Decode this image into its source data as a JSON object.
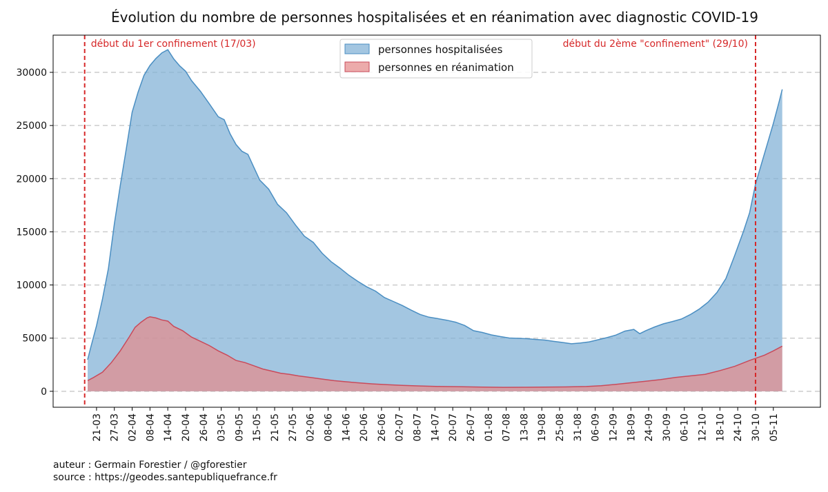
{
  "chart_data": {
    "type": "area",
    "title": "Évolution du nombre de personnes hospitalisées et en réanimation avec diagnostic COVID-19",
    "xlabel": "",
    "ylabel": "",
    "ylim": [
      -1500,
      33500
    ],
    "yticks": [
      0,
      5000,
      10000,
      15000,
      20000,
      25000,
      30000
    ],
    "grid": "horizontal dashed",
    "legend_position": "top-center",
    "x_tick_labels": [
      "21-03",
      "27-03",
      "02-04",
      "08-04",
      "14-04",
      "20-04",
      "26-04",
      "03-05",
      "09-05",
      "15-05",
      "21-05",
      "27-05",
      "02-06",
      "08-06",
      "14-06",
      "20-06",
      "26-06",
      "02-07",
      "08-07",
      "14-07",
      "20-07",
      "26-07",
      "01-08",
      "07-08",
      "13-08",
      "19-08",
      "25-08",
      "31-08",
      "06-09",
      "12-09",
      "18-09",
      "24-09",
      "30-09",
      "06-10",
      "12-10",
      "18-10",
      "24-10",
      "30-10",
      "05-11"
    ],
    "x_start": "2020-03-18",
    "x_end": "2020-11-08",
    "series": [
      {
        "name": "personnes hospitalisées",
        "color": "#7fb0d6",
        "line_color": "#4a8ec2",
        "points": [
          [
            "2020-03-18",
            2972
          ],
          [
            "2020-03-19",
            4073
          ],
          [
            "2020-03-21",
            6172
          ],
          [
            "2020-03-23",
            8673
          ],
          [
            "2020-03-25",
            11539
          ],
          [
            "2020-03-27",
            15732
          ],
          [
            "2020-03-29",
            19354
          ],
          [
            "2020-03-31",
            22757
          ],
          [
            "2020-04-02",
            26246
          ],
          [
            "2020-04-04",
            28143
          ],
          [
            "2020-04-06",
            29722
          ],
          [
            "2020-04-08",
            30639
          ],
          [
            "2020-04-10",
            31305
          ],
          [
            "2020-04-12",
            31832
          ],
          [
            "2020-04-14",
            32131
          ],
          [
            "2020-04-16",
            31267
          ],
          [
            "2020-04-18",
            30610
          ],
          [
            "2020-04-20",
            30106
          ],
          [
            "2020-04-22",
            29219
          ],
          [
            "2020-04-25",
            28217
          ],
          [
            "2020-04-28",
            27036
          ],
          [
            "2020-05-01",
            25827
          ],
          [
            "2020-05-03",
            25548
          ],
          [
            "2020-05-05",
            24211
          ],
          [
            "2020-05-07",
            23208
          ],
          [
            "2020-05-09",
            22569
          ],
          [
            "2020-05-11",
            22284
          ],
          [
            "2020-05-13",
            21071
          ],
          [
            "2020-05-15",
            19861
          ],
          [
            "2020-05-18",
            19015
          ],
          [
            "2020-05-21",
            17583
          ],
          [
            "2020-05-24",
            16798
          ],
          [
            "2020-05-27",
            15657
          ],
          [
            "2020-05-30",
            14594
          ],
          [
            "2020-06-02",
            14008
          ],
          [
            "2020-06-05",
            12986
          ],
          [
            "2020-06-08",
            12197
          ],
          [
            "2020-06-11",
            11586
          ],
          [
            "2020-06-14",
            10921
          ],
          [
            "2020-06-17",
            10341
          ],
          [
            "2020-06-20",
            9828
          ],
          [
            "2020-06-23",
            9419
          ],
          [
            "2020-06-26",
            8821
          ],
          [
            "2020-06-29",
            8450
          ],
          [
            "2020-07-02",
            8074
          ],
          [
            "2020-07-05",
            7630
          ],
          [
            "2020-07-08",
            7230
          ],
          [
            "2020-07-11",
            6970
          ],
          [
            "2020-07-14",
            6838
          ],
          [
            "2020-07-17",
            6683
          ],
          [
            "2020-07-20",
            6498
          ],
          [
            "2020-07-23",
            6192
          ],
          [
            "2020-07-26",
            5700
          ],
          [
            "2020-07-29",
            5530
          ],
          [
            "2020-08-01",
            5306
          ],
          [
            "2020-08-04",
            5148
          ],
          [
            "2020-08-07",
            5015
          ],
          [
            "2020-08-10",
            4980
          ],
          [
            "2020-08-13",
            4947
          ],
          [
            "2020-08-16",
            4879
          ],
          [
            "2020-08-19",
            4819
          ],
          [
            "2020-08-22",
            4696
          ],
          [
            "2020-08-25",
            4590
          ],
          [
            "2020-08-28",
            4472
          ],
          [
            "2020-08-31",
            4550
          ],
          [
            "2020-09-03",
            4650
          ],
          [
            "2020-09-06",
            4850
          ],
          [
            "2020-09-09",
            5050
          ],
          [
            "2020-09-12",
            5290
          ],
          [
            "2020-09-15",
            5660
          ],
          [
            "2020-09-18",
            5820
          ],
          [
            "2020-09-20",
            5420
          ],
          [
            "2020-09-22",
            5700
          ],
          [
            "2020-09-25",
            6050
          ],
          [
            "2020-09-28",
            6350
          ],
          [
            "2020-10-01",
            6560
          ],
          [
            "2020-10-04",
            6796
          ],
          [
            "2020-10-07",
            7210
          ],
          [
            "2020-10-10",
            7720
          ],
          [
            "2020-10-13",
            8380
          ],
          [
            "2020-10-16",
            9300
          ],
          [
            "2020-10-19",
            10600
          ],
          [
            "2020-10-22",
            12800
          ],
          [
            "2020-10-25",
            15100
          ],
          [
            "2020-10-27",
            16800
          ],
          [
            "2020-10-29",
            19500
          ],
          [
            "2020-10-31",
            21400
          ],
          [
            "2020-11-02",
            23300
          ],
          [
            "2020-11-04",
            25200
          ],
          [
            "2020-11-06",
            27300
          ],
          [
            "2020-11-07",
            28400
          ]
        ]
      },
      {
        "name": "personnes en réanimation",
        "color": "#e58a8a",
        "line_color": "#c94a5a",
        "points": [
          [
            "2020-03-18",
            1000
          ],
          [
            "2020-03-20",
            1300
          ],
          [
            "2020-03-23",
            1800
          ],
          [
            "2020-03-26",
            2700
          ],
          [
            "2020-03-29",
            3800
          ],
          [
            "2020-04-01",
            5107
          ],
          [
            "2020-04-03",
            6017
          ],
          [
            "2020-04-05",
            6500
          ],
          [
            "2020-04-07",
            6900
          ],
          [
            "2020-04-08",
            7004
          ],
          [
            "2020-04-10",
            6900
          ],
          [
            "2020-04-12",
            6714
          ],
          [
            "2020-04-14",
            6600
          ],
          [
            "2020-04-16",
            6100
          ],
          [
            "2020-04-19",
            5700
          ],
          [
            "2020-04-22",
            5100
          ],
          [
            "2020-04-25",
            4700
          ],
          [
            "2020-04-28",
            4300
          ],
          [
            "2020-05-01",
            3800
          ],
          [
            "2020-05-04",
            3400
          ],
          [
            "2020-05-07",
            2900
          ],
          [
            "2020-05-10",
            2700
          ],
          [
            "2020-05-13",
            2400
          ],
          [
            "2020-05-16",
            2100
          ],
          [
            "2020-05-19",
            1900
          ],
          [
            "2020-05-22",
            1700
          ],
          [
            "2020-05-25",
            1600
          ],
          [
            "2020-05-28",
            1450
          ],
          [
            "2020-06-01",
            1300
          ],
          [
            "2020-06-05",
            1150
          ],
          [
            "2020-06-09",
            1000
          ],
          [
            "2020-06-13",
            900
          ],
          [
            "2020-06-17",
            800
          ],
          [
            "2020-06-22",
            700
          ],
          [
            "2020-06-27",
            620
          ],
          [
            "2020-07-02",
            560
          ],
          [
            "2020-07-08",
            500
          ],
          [
            "2020-07-15",
            450
          ],
          [
            "2020-07-22",
            430
          ],
          [
            "2020-07-29",
            390
          ],
          [
            "2020-08-05",
            370
          ],
          [
            "2020-08-12",
            380
          ],
          [
            "2020-08-19",
            390
          ],
          [
            "2020-08-26",
            410
          ],
          [
            "2020-09-02",
            450
          ],
          [
            "2020-09-07",
            530
          ],
          [
            "2020-09-12",
            650
          ],
          [
            "2020-09-17",
            800
          ],
          [
            "2020-09-22",
            950
          ],
          [
            "2020-09-27",
            1100
          ],
          [
            "2020-10-02",
            1300
          ],
          [
            "2020-10-07",
            1450
          ],
          [
            "2020-10-12",
            1600
          ],
          [
            "2020-10-17",
            1950
          ],
          [
            "2020-10-22",
            2350
          ],
          [
            "2020-10-27",
            2900
          ],
          [
            "2020-11-01",
            3400
          ],
          [
            "2020-11-04",
            3800
          ],
          [
            "2020-11-07",
            4250
          ]
        ]
      }
    ],
    "annotations": [
      {
        "date": "2020-03-17",
        "label": "début du 1er confinement (17/03)",
        "color": "#d62728",
        "style": "dashed vertical line"
      },
      {
        "date": "2020-10-29",
        "label": "début du 2ème \"confinement\" (29/10)",
        "color": "#d62728",
        "style": "dashed vertical line"
      }
    ]
  },
  "footer": {
    "author": "auteur : Germain Forestier / @gforestier",
    "source": "source : https://geodes.santepubliquefrance.fr"
  }
}
